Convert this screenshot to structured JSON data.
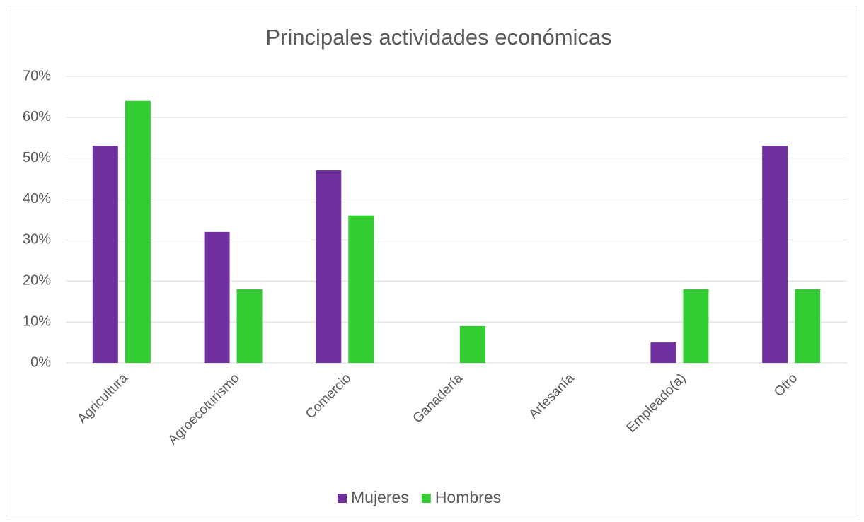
{
  "chart_data": {
    "type": "bar",
    "title": "Principales actividades económicas",
    "categories": [
      "Agricultura",
      "Agroecoturismo",
      "Comercio",
      "Ganadería",
      "Artesanía",
      "Empleado(a)",
      "Otro"
    ],
    "series": [
      {
        "name": "Mujeres",
        "color": "#7030a0",
        "values": [
          53,
          32,
          47,
          0,
          0,
          5,
          53
        ]
      },
      {
        "name": "Hombres",
        "color": "#33cc33",
        "values": [
          64,
          18,
          36,
          9,
          0,
          18,
          18
        ]
      }
    ],
    "ylim": [
      0,
      70
    ],
    "yticks": [
      {
        "value": 0,
        "label": "0%"
      },
      {
        "value": 10,
        "label": "10%"
      },
      {
        "value": 20,
        "label": "20%"
      },
      {
        "value": 30,
        "label": "30%"
      },
      {
        "value": 40,
        "label": "40%"
      },
      {
        "value": 50,
        "label": "50%"
      },
      {
        "value": 60,
        "label": "60%"
      },
      {
        "value": 70,
        "label": "70%"
      }
    ],
    "grid": true,
    "legend": "bottom"
  }
}
